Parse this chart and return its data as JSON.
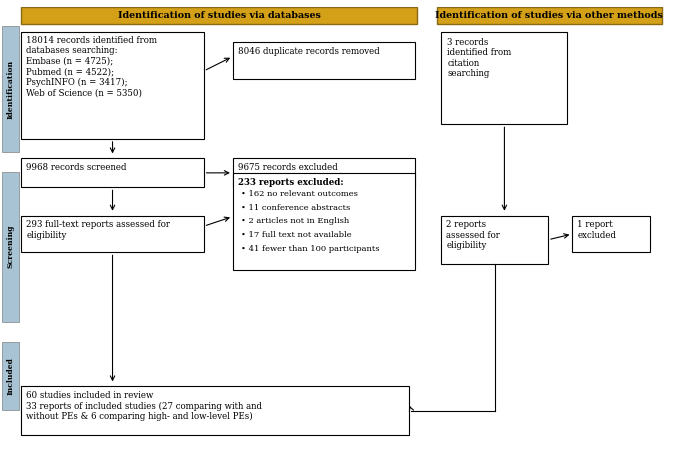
{
  "header1_text": "Identification of studies via databases",
  "header2_text": "Identification of studies via other methods",
  "header_bg": "#D4A017",
  "header_fg": "#000000",
  "side_labels": [
    "Identification",
    "Screening",
    "Included"
  ],
  "side_label_color": "#000000",
  "side_bg": "#A8C4D4",
  "box_bg": "#FFFFFF",
  "box_edge": "#000000",
  "box1_text": "18014 records identified from\ndatabases searching:\nEmbase (n = 4725);\nPubmed (n = 4522);\nPsychINFO (n = 3417);\nWeb of Science (n = 5350)",
  "box1_bold_prefix": "18014",
  "box2_text": "8046 duplicate records removed",
  "box3_text": "3 records\nidentified from\ncitation\nsearching",
  "box4_text": "9968 records screened",
  "box5_text": "9675 records excluded",
  "box6_text": "293 full-text reports assessed for\neligibility",
  "box7_title": "233 reports excluded:",
  "box7_bullets": [
    "162 no relevant outcomes",
    "11 conference abstracts",
    "2 articles not in English",
    "17 full text not available",
    "41 fewer than 100 participants"
  ],
  "box8_text": "2 reports\nassessed for\neligibility",
  "box9_text": "1 report\nexcluded",
  "box10_text": "60 studies included in review\n33 reports of included studies (27 comparing with and\nwithout PEs & 6 comparing high- and low-level PEs)",
  "arrow_color": "#000000",
  "background": "#FFFFFF"
}
